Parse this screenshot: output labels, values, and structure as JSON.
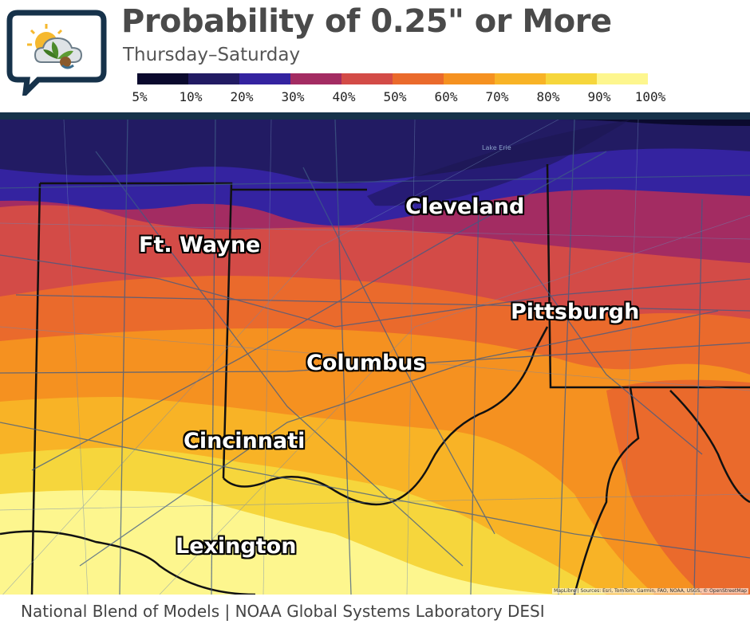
{
  "header": {
    "title": "Probability of 0.25\" or More",
    "subtitle": "Thursday–Saturday",
    "logo_icon": "weather-cloud-sun-leaf-logo"
  },
  "legend": {
    "colors": [
      "#0b0a2e",
      "#221b63",
      "#3423a0",
      "#a32c62",
      "#d34b47",
      "#ea6a2c",
      "#f59120",
      "#f8b326",
      "#f6d63c",
      "#fdf68e"
    ],
    "labels": [
      "5%",
      "10%",
      "20%",
      "30%",
      "40%",
      "50%",
      "60%",
      "70%",
      "80%",
      "90%",
      "100%"
    ]
  },
  "map": {
    "cities": [
      "Cleveland",
      "Ft. Wayne",
      "Pittsburgh",
      "Columbus",
      "Cincinnati",
      "Lexington"
    ],
    "water_label": "Lake Erie",
    "attribution": "MapLibre | Sources: Esri, TomTom, Garmin, FAO, NOAA, USGS, © OpenStreetMap"
  },
  "footer": {
    "text": "National Blend of Models | NOAA Global Systems Laboratory DESI"
  }
}
